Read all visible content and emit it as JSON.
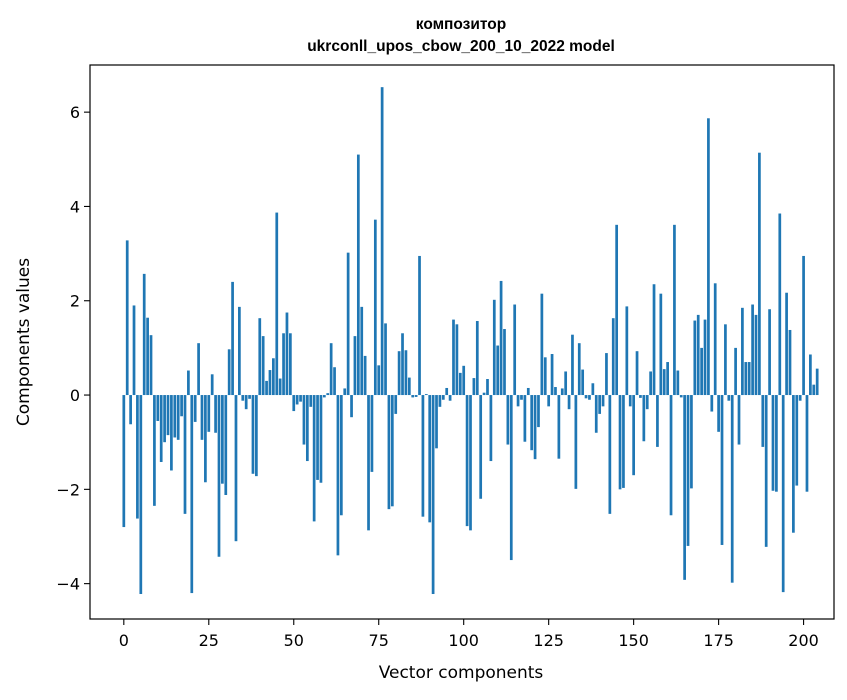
{
  "chart_data": {
    "type": "bar",
    "title_line1": "композитор",
    "title_line2": "ukrconll_upos_cbow_200_10_2022 model",
    "xlabel": "Vector components",
    "ylabel": "Components values",
    "xlim": [
      -9.95,
      208.95
    ],
    "ylim": [
      -4.75,
      7.0
    ],
    "xticks": [
      0,
      25,
      50,
      75,
      100,
      125,
      150,
      175,
      200
    ],
    "yticks": [
      -4,
      -2,
      0,
      2,
      4,
      6
    ],
    "ytick_labels": [
      "−4",
      "−2",
      "0",
      "2",
      "4",
      "6"
    ],
    "bar_color": "#1f77b4",
    "grid": false,
    "values": [
      -2.8,
      3.28,
      -0.62,
      1.9,
      -2.62,
      -4.22,
      2.57,
      1.64,
      1.27,
      -2.35,
      -0.55,
      -1.42,
      -1.0,
      -0.85,
      -1.6,
      -0.9,
      -0.95,
      -0.45,
      -2.52,
      0.52,
      -4.2,
      -0.57,
      1.1,
      -0.95,
      -1.85,
      -0.78,
      0.44,
      -0.8,
      -3.43,
      -1.88,
      -2.12,
      0.97,
      2.4,
      -3.1,
      1.87,
      -0.12,
      -0.3,
      -0.08,
      -1.67,
      -1.72,
      1.63,
      1.25,
      0.3,
      0.53,
      0.78,
      3.87,
      0.35,
      1.31,
      1.75,
      1.31,
      -0.34,
      -0.2,
      -0.14,
      -1.05,
      -1.4,
      -0.25,
      -2.68,
      -1.8,
      -1.86,
      -0.05,
      0.04,
      1.1,
      0.59,
      -3.4,
      -2.55,
      0.14,
      3.02,
      -0.47,
      1.25,
      5.1,
      1.87,
      0.83,
      -2.87,
      -1.63,
      3.72,
      0.63,
      6.53,
      1.52,
      -2.42,
      -2.36,
      -0.4,
      0.93,
      1.31,
      0.95,
      0.37,
      -0.05,
      -0.04,
      2.95,
      -2.58,
      0.02,
      -2.7,
      -4.22,
      -1.13,
      -0.25,
      -0.1,
      0.15,
      -0.12,
      1.6,
      1.5,
      0.47,
      0.62,
      -2.78,
      -2.87,
      0.36,
      1.57,
      -2.2,
      0.05,
      0.34,
      -1.4,
      2.02,
      1.05,
      2.42,
      1.4,
      -1.05,
      -3.5,
      1.92,
      -0.24,
      -0.1,
      -0.99,
      0.15,
      -1.17,
      -1.36,
      -0.68,
      2.15,
      0.8,
      -0.24,
      0.87,
      0.17,
      -1.35,
      0.14,
      0.5,
      -0.3,
      1.28,
      -1.99,
      1.1,
      0.54,
      -0.07,
      -0.1,
      0.25,
      -0.8,
      -0.4,
      -0.24,
      0.89,
      -2.52,
      1.63,
      3.61,
      -2.0,
      -1.97,
      1.88,
      -0.24,
      -1.7,
      0.93,
      -0.06,
      -0.98,
      -0.3,
      0.5,
      2.35,
      -1.1,
      2.15,
      0.55,
      0.7,
      -2.55,
      3.61,
      0.52,
      -0.05,
      -3.92,
      -3.2,
      -1.98,
      1.58,
      1.7,
      1.0,
      1.6,
      5.87,
      -0.35,
      2.37,
      -0.78,
      -3.18,
      1.5,
      -0.12,
      -3.98,
      1.0,
      -1.05,
      1.85,
      0.7,
      0.7,
      1.92,
      1.7,
      5.14,
      -1.1,
      -3.22,
      1.82,
      -2.03,
      -2.05,
      3.85,
      -4.18,
      2.17,
      1.38,
      -2.92,
      -1.92,
      -0.12,
      2.95,
      -2.05,
      0.86,
      0.22,
      0.56
    ]
  }
}
